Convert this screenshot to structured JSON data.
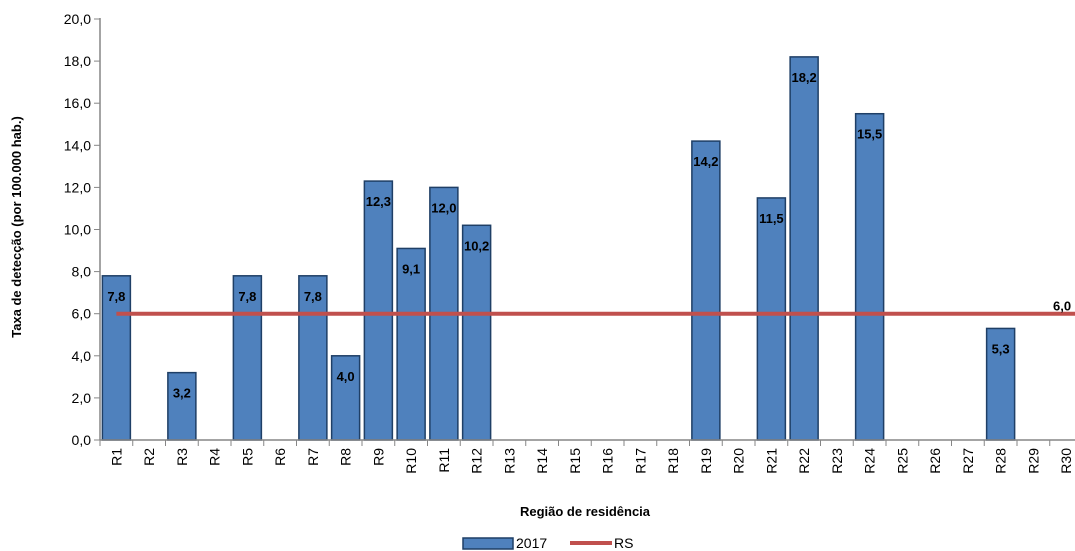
{
  "chart_data": {
    "type": "bar",
    "categories": [
      "R1",
      "R2",
      "R3",
      "R4",
      "R5",
      "R6",
      "R7",
      "R8",
      "R9",
      "R10",
      "R11",
      "R12",
      "R13",
      "R14",
      "R15",
      "R16",
      "R17",
      "R18",
      "R19",
      "R20",
      "R21",
      "R22",
      "R23",
      "R24",
      "R25",
      "R26",
      "R27",
      "R28",
      "R29",
      "R30"
    ],
    "series": [
      {
        "name": "2017",
        "type": "bar",
        "color": "#4F81BD",
        "values": [
          7.8,
          null,
          3.2,
          null,
          7.8,
          null,
          7.8,
          4.0,
          12.3,
          9.1,
          12.0,
          10.2,
          null,
          null,
          null,
          null,
          null,
          null,
          14.2,
          null,
          11.5,
          18.2,
          null,
          15.5,
          null,
          null,
          null,
          5.3,
          null,
          null
        ],
        "labels": [
          "7,8",
          "",
          "3,2",
          "",
          "7,8",
          "",
          "7,8",
          "4,0",
          "12,3",
          "9,1",
          "12,0",
          "10,2",
          "",
          "",
          "",
          "",
          "",
          "",
          "14,2",
          "",
          "11,5",
          "18,2",
          "",
          "15,5",
          "",
          "",
          "",
          "5,3",
          "",
          ""
        ]
      },
      {
        "name": "RS",
        "type": "line",
        "color": "#C0504D",
        "value": 6.0,
        "label": "6,0"
      }
    ],
    "xlabel": "Região de residência",
    "ylabel": "Taxa de detecção (por 100.000 hab.)",
    "ylim": [
      0,
      20
    ],
    "yticks": [
      "0,0",
      "2,0",
      "4,0",
      "6,0",
      "8,0",
      "10,0",
      "12,0",
      "14,0",
      "16,0",
      "18,0",
      "20,0"
    ],
    "grid": false,
    "legend": "bottom"
  }
}
